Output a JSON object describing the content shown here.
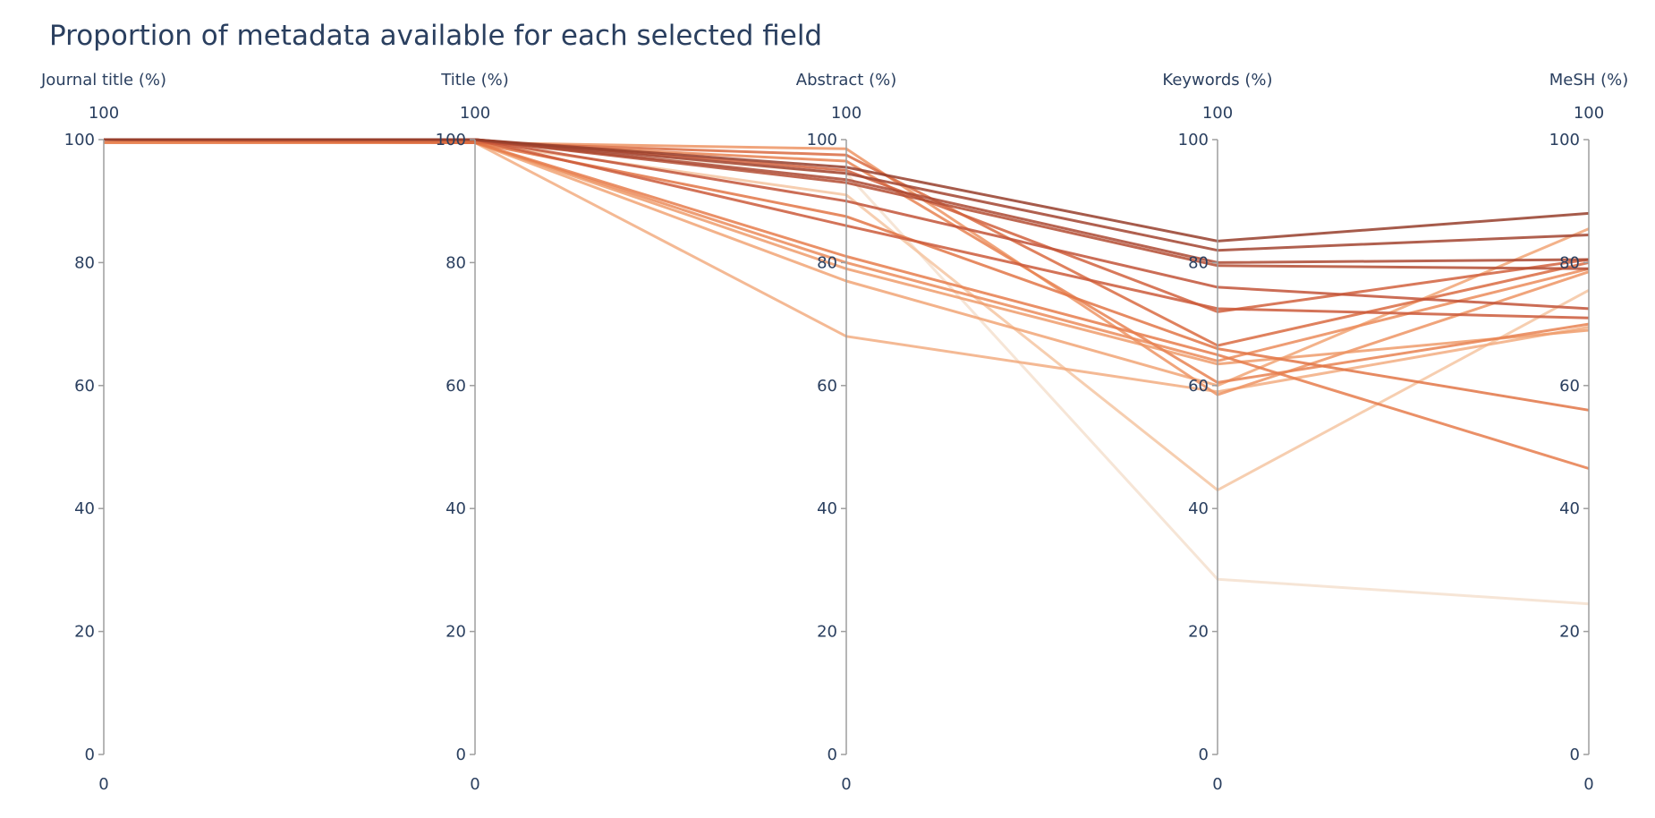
{
  "chart_data": {
    "type": "parallel-coordinates",
    "title": "Proportion of metadata available for each selected field",
    "dimensions": [
      {
        "label": "Journal title (%)",
        "range": [
          0,
          100
        ],
        "range_max_label": "100",
        "range_min_label": "0",
        "ticks": [
          "0",
          "20",
          "40",
          "60",
          "80",
          "100"
        ]
      },
      {
        "label": "Title (%)",
        "range": [
          0,
          100
        ],
        "range_max_label": "100",
        "range_min_label": "0",
        "ticks": [
          "0",
          "20",
          "40",
          "60",
          "80",
          "100"
        ]
      },
      {
        "label": "Abstract (%)",
        "range": [
          0,
          100
        ],
        "range_max_label": "100",
        "range_min_label": "0",
        "ticks": [
          "0",
          "20",
          "40",
          "60",
          "80",
          "100"
        ]
      },
      {
        "label": "Keywords (%)",
        "range": [
          0,
          100
        ],
        "range_max_label": "100",
        "range_min_label": "0",
        "ticks": [
          "0",
          "20",
          "40",
          "60",
          "80",
          "100"
        ]
      },
      {
        "label": "MeSH (%)",
        "range": [
          0,
          100
        ],
        "range_max_label": "100",
        "range_min_label": "0",
        "ticks": [
          "0",
          "20",
          "40",
          "60",
          "80",
          "100"
        ]
      }
    ],
    "colorscale": [
      "#f5ebe0",
      "#f5caa8",
      "#f0a070",
      "#e57848",
      "#c8573a",
      "#8e3a2a"
    ],
    "series": [
      {
        "values": [
          100,
          100,
          95.5,
          83.5,
          88.0
        ],
        "color_value": 0.97
      },
      {
        "values": [
          100,
          100,
          94.5,
          82.0,
          84.5
        ],
        "color_value": 0.93
      },
      {
        "values": [
          100,
          100,
          93.5,
          80.0,
          80.5
        ],
        "color_value": 0.9
      },
      {
        "values": [
          100,
          100,
          93.0,
          79.5,
          79.0
        ],
        "color_value": 0.87
      },
      {
        "values": [
          100,
          100,
          90.0,
          76.0,
          72.5
        ],
        "color_value": 0.82
      },
      {
        "values": [
          100,
          100,
          86.0,
          72.5,
          71.0
        ],
        "color_value": 0.78
      },
      {
        "values": [
          100,
          100,
          95.0,
          72.0,
          80.5
        ],
        "color_value": 0.74
      },
      {
        "values": [
          100,
          99.5,
          97.5,
          66.5,
          80.0
        ],
        "color_value": 0.68
      },
      {
        "values": [
          100,
          99.5,
          87.5,
          66.0,
          56.0
        ],
        "color_value": 0.62
      },
      {
        "values": [
          99.5,
          99.5,
          81.0,
          65.0,
          46.5
        ],
        "color_value": 0.58
      },
      {
        "values": [
          100,
          99.5,
          96.5,
          60.5,
          70.0
        ],
        "color_value": 0.55
      },
      {
        "values": [
          100,
          99.5,
          80.0,
          64.0,
          79.0
        ],
        "color_value": 0.5
      },
      {
        "values": [
          100,
          99.5,
          98.5,
          58.5,
          78.5
        ],
        "color_value": 0.46
      },
      {
        "values": [
          99.5,
          99.5,
          79.0,
          63.5,
          69.0
        ],
        "color_value": 0.42
      },
      {
        "values": [
          100,
          99.5,
          77.0,
          60.0,
          85.5
        ],
        "color_value": 0.38
      },
      {
        "values": [
          100,
          99.5,
          68.0,
          59.0,
          69.5
        ],
        "color_value": 0.34
      },
      {
        "values": [
          100,
          99.5,
          91.0,
          43.0,
          75.5
        ],
        "color_value": 0.22
      },
      {
        "values": [
          100,
          99.5,
          94.5,
          28.5,
          24.5
        ],
        "color_value": 0.06
      }
    ]
  }
}
